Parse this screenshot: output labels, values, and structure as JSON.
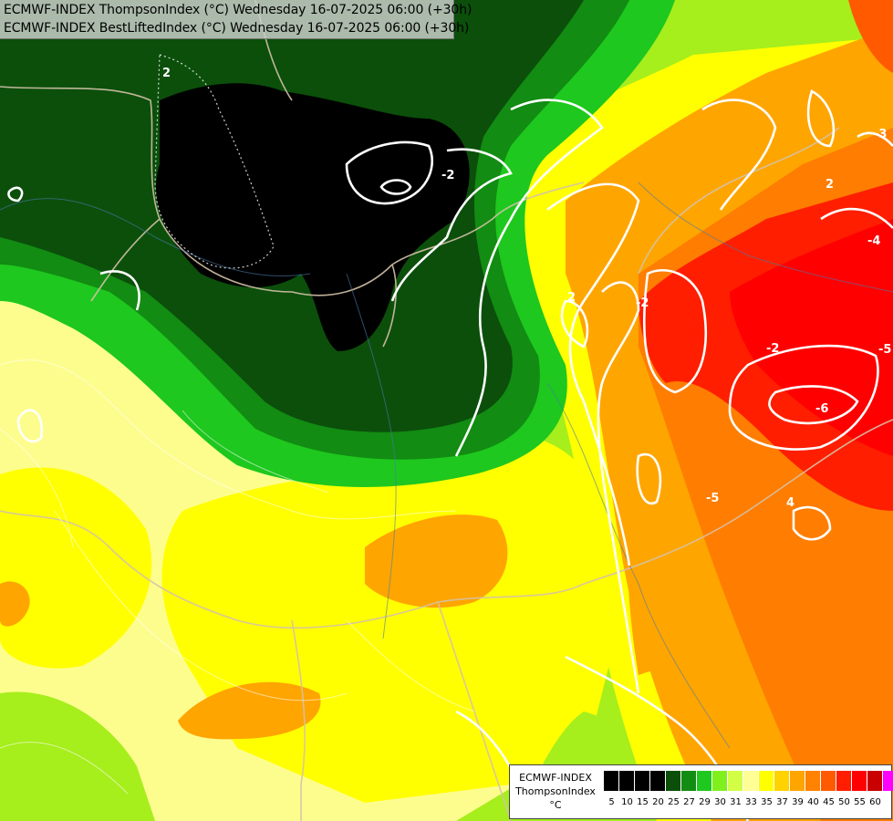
{
  "header": {
    "line1": "ECMWF-INDEX ThompsonIndex (°C) Wednesday 16-07-2025 06:00 (+30h)",
    "line2": "ECMWF-INDEX BestLiftedIndex (°C) Wednesday 16-07-2025 06:00 (+30h)"
  },
  "legend": {
    "title_line1": "ECMWF-INDEX",
    "title_line2": "ThompsonIndex",
    "title_line3": "°C",
    "colors": [
      "#000000",
      "#000000",
      "#000000",
      "#000000",
      "#0b4f0b",
      "#128c12",
      "#1ec81e",
      "#7ff01e",
      "#d2ff46",
      "#ffff96",
      "#ffff00",
      "#ffd200",
      "#ffa500",
      "#ff8200",
      "#ff5a00",
      "#ff1e00",
      "#ff0000",
      "#c80000",
      "#ff00ff",
      "#b400ff",
      "#8200ff",
      "#5000ff",
      "#0000ff"
    ],
    "ticks": [
      "5",
      "10",
      "15",
      "20",
      "25",
      "27",
      "29",
      "30",
      "31",
      "33",
      "35",
      "37",
      "39",
      "40",
      "45",
      "50",
      "55",
      "60"
    ]
  },
  "contour_labels": [
    "2",
    "-2",
    "-2",
    "2",
    "-3",
    "2",
    "-4",
    "-5",
    "-6",
    "-5",
    "4",
    "-2"
  ]
}
